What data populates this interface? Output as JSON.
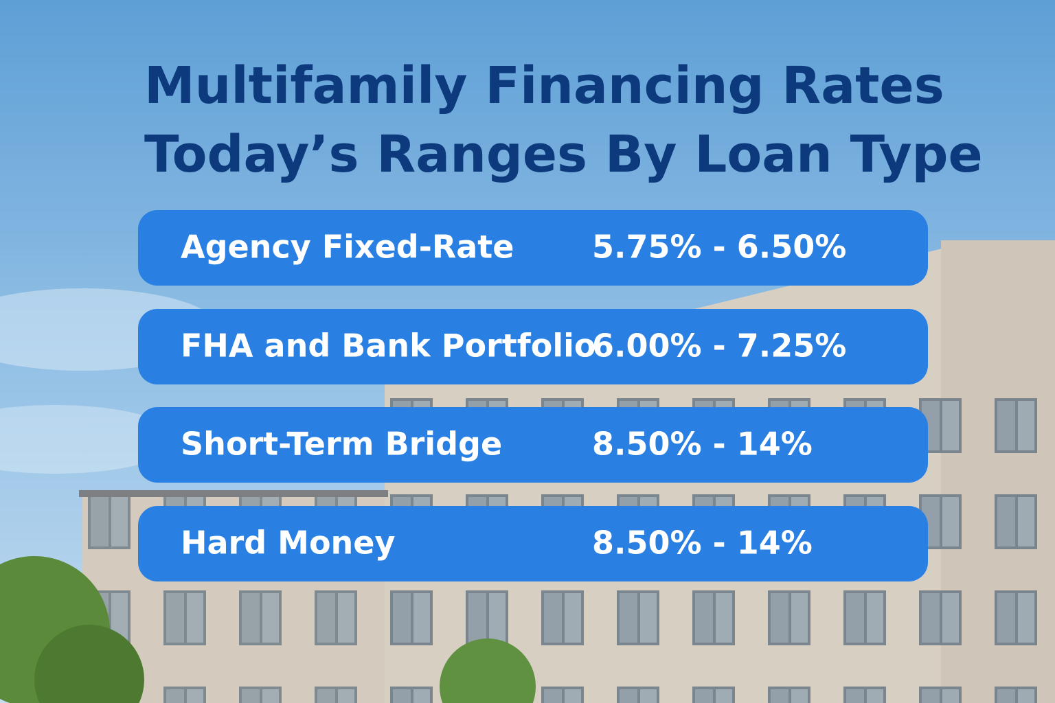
{
  "title": {
    "line1": "Multifamily Financing Rates",
    "line2": "Today’s Ranges By Loan Type"
  },
  "rows": [
    {
      "loan_type": "Agency Fixed-Rate",
      "rate": "5.75% - 6.50%"
    },
    {
      "loan_type": "FHA and Bank Portfolio",
      "rate": "6.00% - 7.25%"
    },
    {
      "loan_type": "Short-Term Bridge",
      "rate": "8.50% - 14%"
    },
    {
      "loan_type": "Hard Money",
      "rate": "8.50% - 14%"
    }
  ]
}
